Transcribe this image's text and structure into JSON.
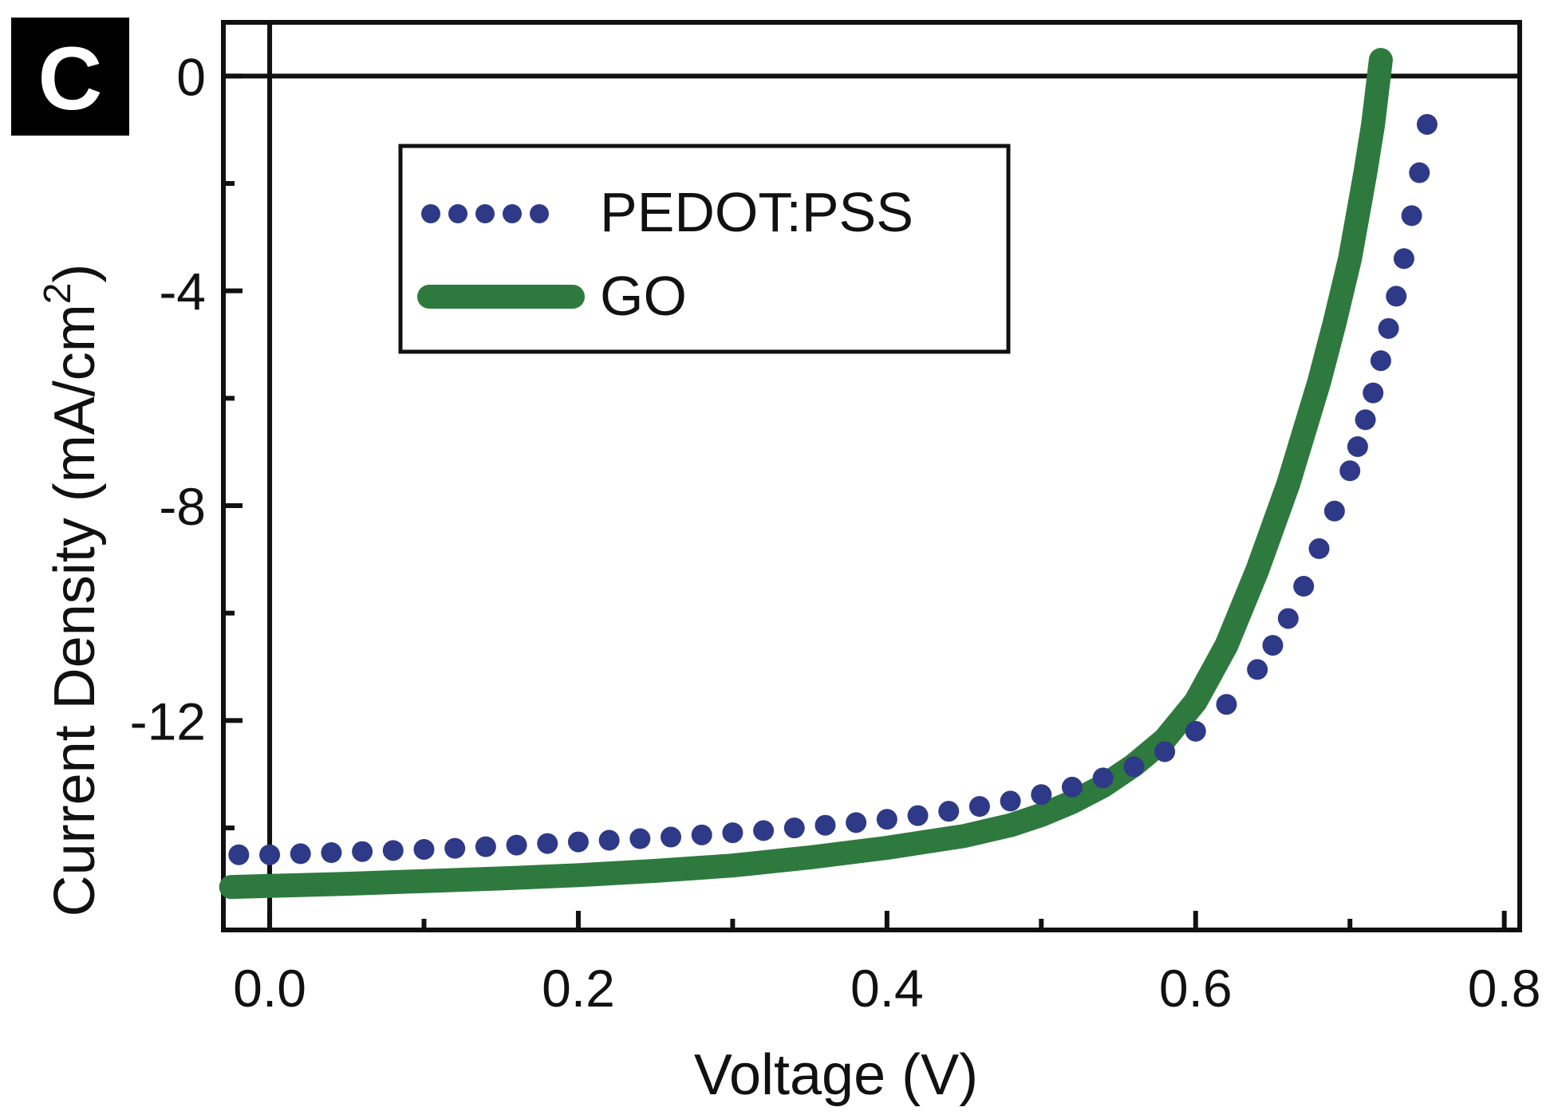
{
  "panel_label": "C",
  "chart_data": {
    "type": "line",
    "title": "",
    "xlabel": "Voltage (V)",
    "ylabel_main": "Current Density (mA/cm",
    "ylabel_sup": "2",
    "ylabel_end": ")",
    "xlim": [
      -0.03,
      0.81
    ],
    "ylim": [
      -15.9,
      1.0
    ],
    "x_ticks": [
      0.0,
      0.1,
      0.2,
      0.3,
      0.4,
      0.5,
      0.6,
      0.7,
      0.8
    ],
    "x_tick_labels": [
      "0.0",
      "0.2",
      "0.4",
      "0.6",
      "0.8"
    ],
    "x_tick_label_values": [
      0.0,
      0.2,
      0.4,
      0.6,
      0.8
    ],
    "y_ticks": [
      0,
      -2,
      -4,
      -6,
      -8,
      -10,
      -12,
      -14
    ],
    "y_tick_labels": [
      "0",
      "-4",
      "-8",
      "-12"
    ],
    "y_tick_label_values": [
      0,
      -4,
      -8,
      -12
    ],
    "reference_lines": {
      "x": 0.0,
      "y": 0.0
    },
    "grid": false,
    "legend_position": "upper-left inside",
    "series": [
      {
        "name": "PEDOT:PSS",
        "style": "dots",
        "color": "#2e3a87",
        "x": [
          -0.02,
          0.0,
          0.02,
          0.04,
          0.06,
          0.08,
          0.1,
          0.12,
          0.14,
          0.16,
          0.18,
          0.2,
          0.22,
          0.24,
          0.26,
          0.28,
          0.3,
          0.32,
          0.34,
          0.36,
          0.38,
          0.4,
          0.42,
          0.44,
          0.46,
          0.48,
          0.5,
          0.52,
          0.54,
          0.56,
          0.58,
          0.6,
          0.62,
          0.64,
          0.65,
          0.66,
          0.67,
          0.68,
          0.69,
          0.7,
          0.705,
          0.71,
          0.715,
          0.72,
          0.725,
          0.73,
          0.735,
          0.74,
          0.745,
          0.75
        ],
        "y": [
          -14.5,
          -14.5,
          -14.48,
          -14.46,
          -14.44,
          -14.42,
          -14.4,
          -14.38,
          -14.35,
          -14.32,
          -14.29,
          -14.26,
          -14.23,
          -14.2,
          -14.17,
          -14.13,
          -14.09,
          -14.05,
          -14.0,
          -13.95,
          -13.9,
          -13.84,
          -13.77,
          -13.69,
          -13.6,
          -13.5,
          -13.38,
          -13.24,
          -13.07,
          -12.86,
          -12.58,
          -12.2,
          -11.7,
          -11.05,
          -10.6,
          -10.1,
          -9.5,
          -8.8,
          -8.1,
          -7.35,
          -6.9,
          -6.4,
          -5.9,
          -5.3,
          -4.7,
          -4.1,
          -3.4,
          -2.6,
          -1.8,
          -0.9
        ]
      },
      {
        "name": "GO",
        "style": "solid",
        "color": "#2e7a3e",
        "x": [
          -0.025,
          0.0,
          0.05,
          0.1,
          0.15,
          0.2,
          0.25,
          0.3,
          0.35,
          0.4,
          0.45,
          0.48,
          0.5,
          0.52,
          0.54,
          0.56,
          0.58,
          0.6,
          0.62,
          0.64,
          0.66,
          0.68,
          0.69,
          0.7,
          0.705,
          0.71,
          0.715,
          0.72
        ],
        "y": [
          -15.1,
          -15.08,
          -15.04,
          -14.99,
          -14.94,
          -14.88,
          -14.8,
          -14.7,
          -14.55,
          -14.37,
          -14.15,
          -13.95,
          -13.76,
          -13.52,
          -13.22,
          -12.83,
          -12.35,
          -11.65,
          -10.6,
          -9.2,
          -7.6,
          -5.7,
          -4.6,
          -3.4,
          -2.6,
          -1.8,
          -0.9,
          0.3
        ]
      }
    ]
  }
}
